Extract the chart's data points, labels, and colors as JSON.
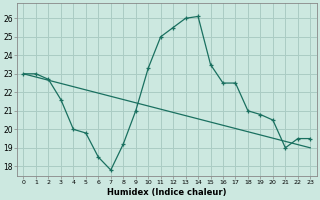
{
  "xlabel": "Humidex (Indice chaleur)",
  "background_color": "#cce8e0",
  "grid_color": "#aaccC4",
  "line_color": "#1a7060",
  "xlim": [
    -0.5,
    23.5
  ],
  "ylim": [
    17.5,
    26.8
  ],
  "x_ticks": [
    0,
    1,
    2,
    3,
    4,
    5,
    6,
    7,
    8,
    9,
    10,
    11,
    12,
    13,
    14,
    15,
    16,
    17,
    18,
    19,
    20,
    21,
    22,
    23
  ],
  "y_ticks": [
    18,
    19,
    20,
    21,
    22,
    23,
    24,
    25,
    26
  ],
  "curve1_x": [
    0,
    1,
    2,
    3,
    4,
    5,
    6,
    7,
    8,
    9,
    10,
    11,
    12,
    13,
    14,
    15,
    16,
    17,
    18,
    19,
    20,
    21,
    22,
    23
  ],
  "curve1_y": [
    23.0,
    23.0,
    22.7,
    21.6,
    20.0,
    19.8,
    18.5,
    17.8,
    19.2,
    21.0,
    23.3,
    25.0,
    25.5,
    26.0,
    26.1,
    23.5,
    22.5,
    22.5,
    21.0,
    20.8,
    20.5,
    19.0,
    19.5,
    19.5
  ],
  "curve2_x": [
    0,
    23
  ],
  "curve2_y": [
    23.0,
    19.0
  ]
}
